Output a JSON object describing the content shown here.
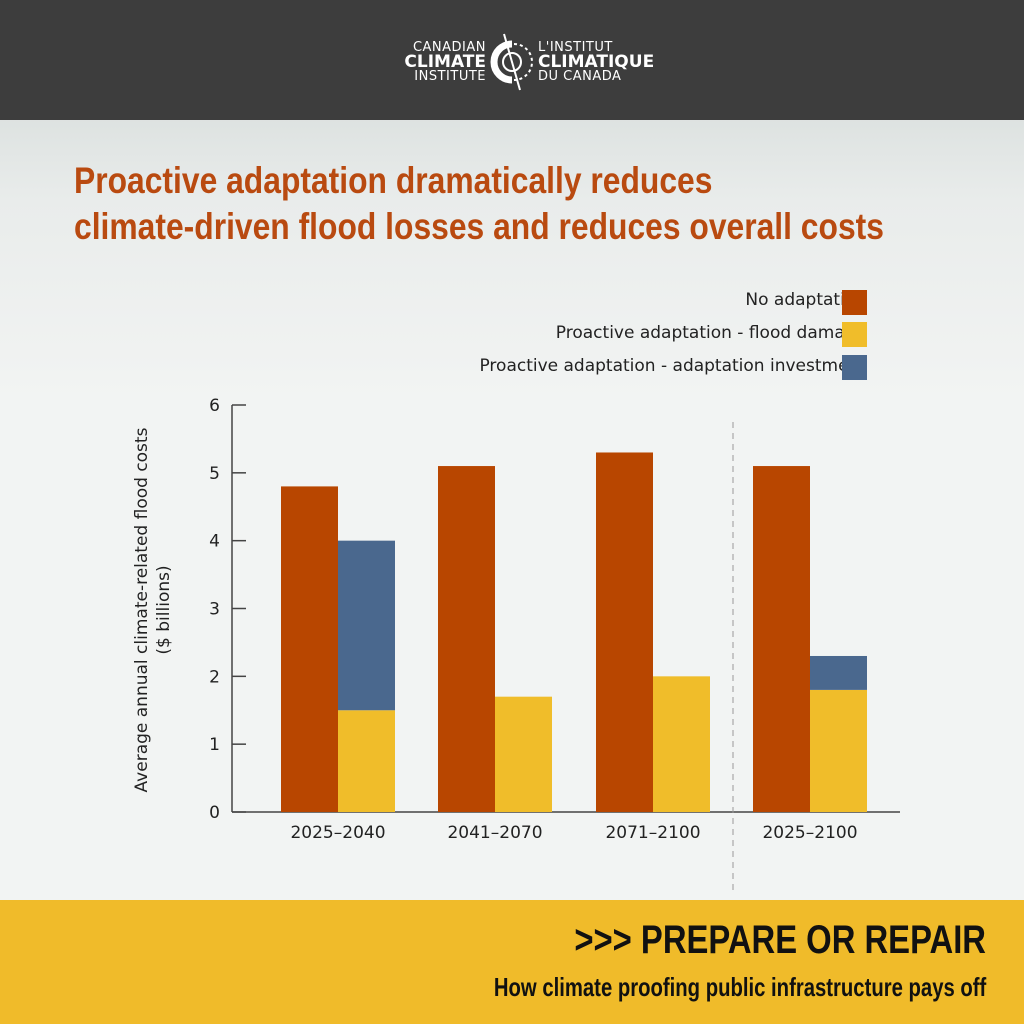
{
  "header": {
    "logo_en": [
      "CANADIAN",
      "CLIMATE",
      "INSTITUTE"
    ],
    "logo_fr": [
      "L'INSTITUT",
      "CLIMATIQUE",
      "DU CANADA"
    ],
    "background": "#3d3d3d"
  },
  "title_lines": [
    "Proactive adaptation dramatically reduces",
    "climate-driven flood losses and reduces overall costs"
  ],
  "footer": {
    "headline": ">>> PREPARE OR REPAIR",
    "subtitle": "How climate proofing public infrastructure pays off",
    "background": "#f0bb2a"
  },
  "chart_data": {
    "type": "bar",
    "stacked_second_bar": true,
    "title": "Proactive adaptation dramatically reduces climate-driven flood losses and reduces overall costs",
    "ylabel_lines": [
      "Average annual climate-related flood costs",
      "($ billions)"
    ],
    "xlabel": "",
    "ylim": [
      0,
      6
    ],
    "yticks": [
      0,
      1,
      2,
      3,
      4,
      5,
      6
    ],
    "grid": false,
    "legend_placement": "top-right",
    "categories": [
      "2025–2040",
      "2041–2070",
      "2071–2100",
      "2025–2100"
    ],
    "separator_before_category": 3,
    "series": [
      {
        "name": "No adaptation",
        "color": "#b84600",
        "values": [
          4.8,
          5.1,
          5.3,
          5.1
        ],
        "bar": "first"
      },
      {
        "name": "Proactive adaptation - flood damage",
        "color": "#f0bd2a",
        "values": [
          1.5,
          1.7,
          2.0,
          1.8
        ],
        "bar": "second"
      },
      {
        "name": "Proactive adaptation - adaptation investment",
        "color": "#4a688e",
        "values": [
          2.5,
          0,
          0,
          0.5
        ],
        "bar": "second"
      }
    ]
  }
}
